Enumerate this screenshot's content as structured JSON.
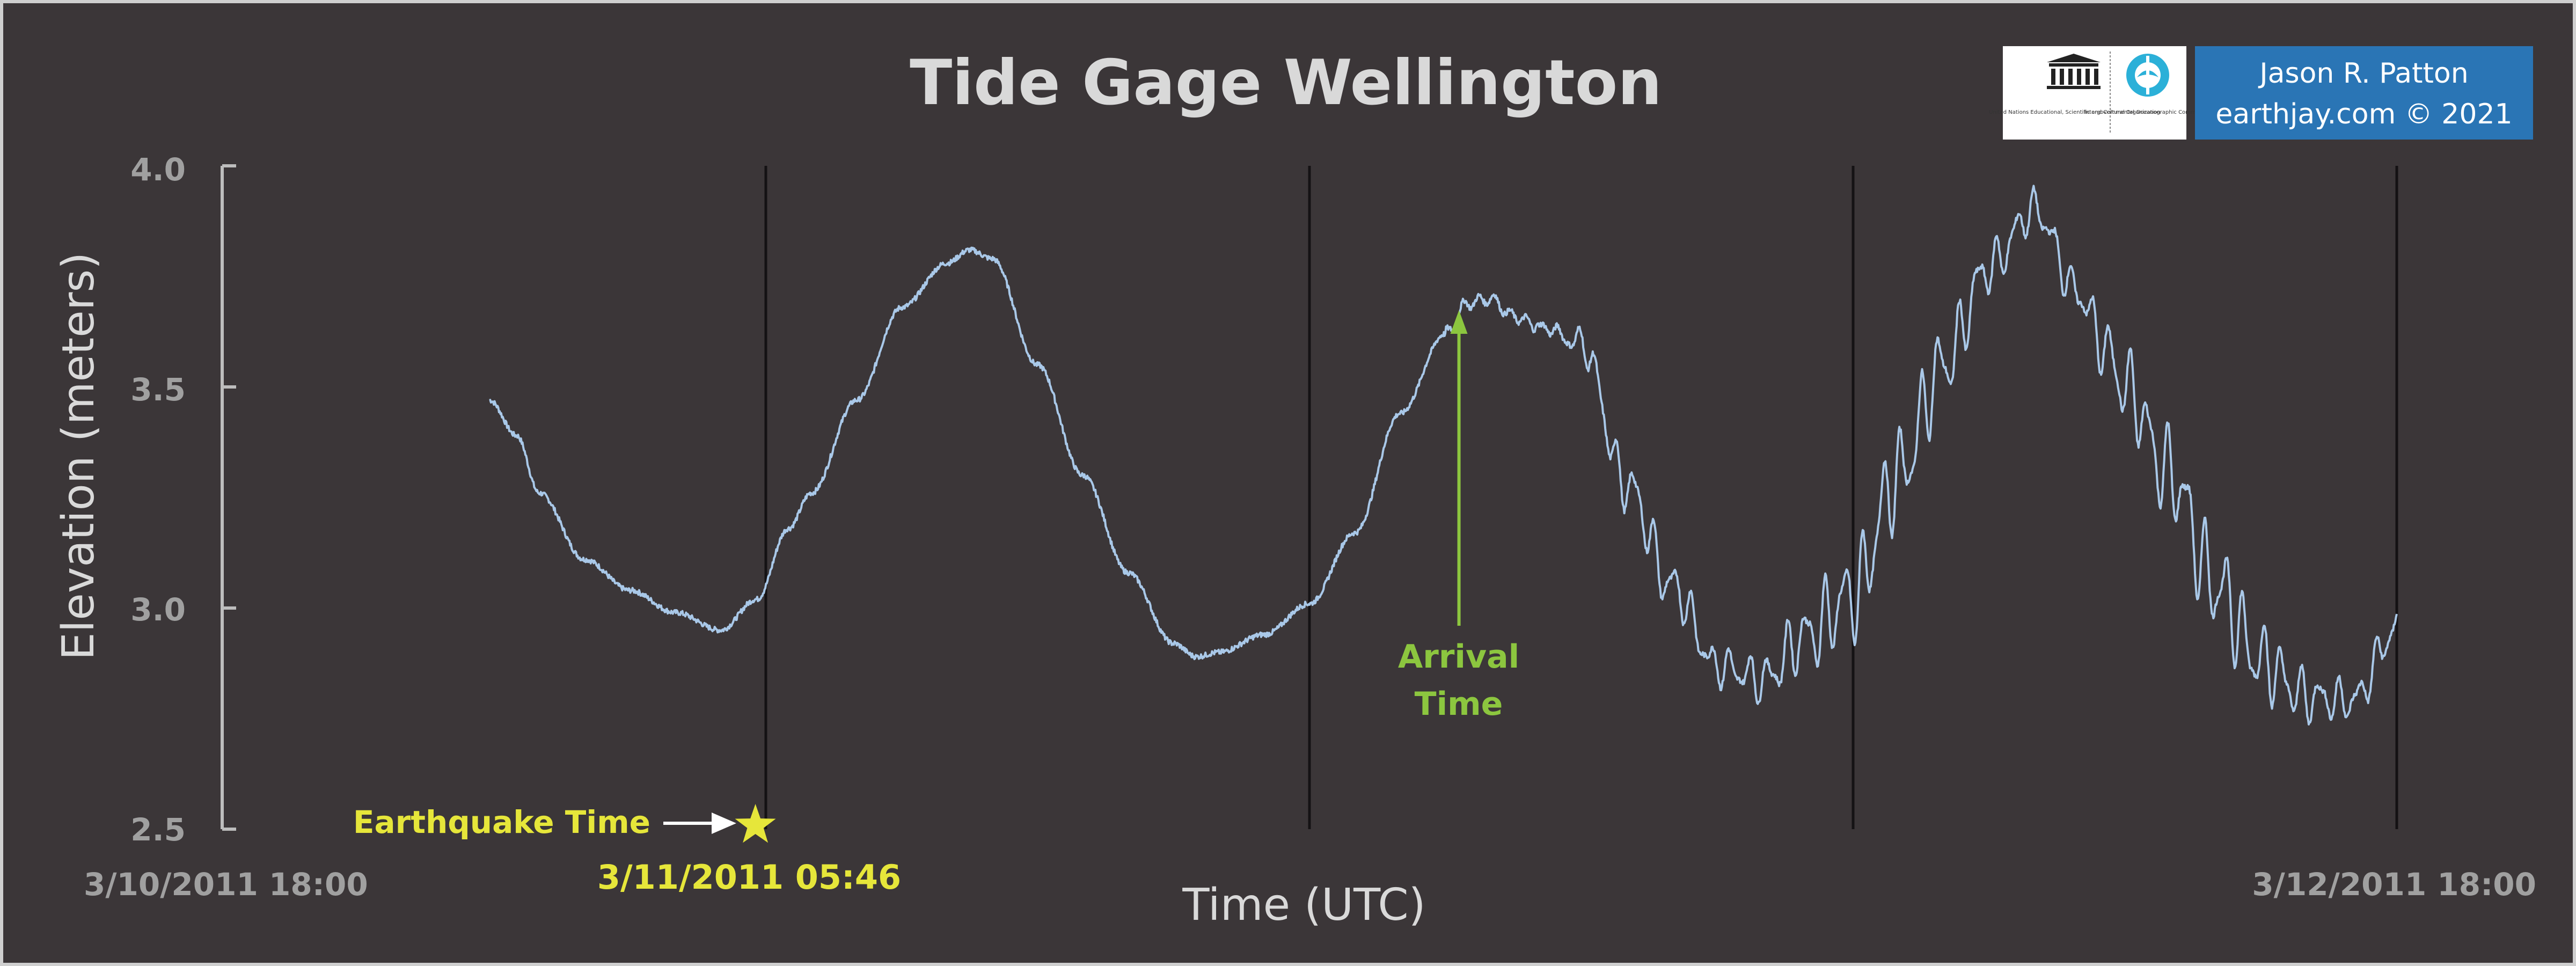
{
  "chart_data": {
    "type": "line",
    "title": "Tide Gage Wellington",
    "xlabel": "Time (UTC)",
    "ylabel": "Elevation (meters)",
    "x_range_hours": [
      0,
      48
    ],
    "ylim": [
      2.5,
      4.0
    ],
    "y_ticks": [
      "4.0",
      "3.5",
      "3.0",
      "2.5"
    ],
    "x_tick_labels": [
      {
        "hours": 0,
        "label": "3/10/2011 18:00"
      },
      {
        "hours": 48,
        "label": "3/12/2011 18:00"
      }
    ],
    "vertical_gridlines_hours": [
      12,
      24,
      36,
      48
    ],
    "grid": "vertical lines only",
    "line_color": "#a9c8e8",
    "series": [
      {
        "x_hours": [
          5.9,
          6.5,
          7,
          8,
          9,
          10,
          11,
          11.8,
          12.5,
          13,
          14,
          15,
          16,
          16.5,
          17,
          18,
          19,
          20,
          21,
          21.5,
          22,
          23,
          24,
          25,
          26,
          27,
          27.5,
          28,
          28.5,
          29,
          30,
          31,
          32,
          33,
          34,
          35,
          36,
          37,
          38,
          39,
          40,
          41,
          41.5,
          42,
          43,
          44,
          45,
          46,
          47,
          48
        ],
        "y": [
          3.47,
          3.39,
          3.26,
          3.11,
          3.04,
          2.99,
          2.95,
          3.02,
          3.18,
          3.26,
          3.47,
          3.68,
          3.78,
          3.81,
          3.79,
          3.55,
          3.3,
          3.08,
          2.92,
          2.89,
          2.9,
          2.94,
          3.01,
          3.17,
          3.44,
          3.62,
          3.69,
          3.7,
          3.66,
          3.64,
          3.6,
          3.28,
          3.05,
          2.87,
          2.84,
          2.94,
          3.03,
          3.3,
          3.55,
          3.77,
          3.9,
          3.71,
          3.6,
          3.5,
          3.3,
          3.05,
          2.88,
          2.8,
          2.79,
          2.95
        ]
      }
    ],
    "oscillation_start_hours": 29,
    "annotations": {
      "earthquake_label": "Earthquake Time",
      "earthquake_time_label": "3/11/2011 05:46",
      "earthquake_hours": 11.77,
      "earthquake_color": "#e6e63a",
      "arrival_label_line1": "Arrival",
      "arrival_label_line2": "Time",
      "arrival_hours": 27.3,
      "arrival_color": "#8cc63f"
    }
  },
  "logos": {
    "unesco_text": "United Nations Educational, Scientific and Cultural Organization",
    "ioc_text": "Intergovernmental Oceanographic Commission"
  },
  "credit": {
    "line1": "Jason R. Patton",
    "line2": "earthjay.com © 2021",
    "color": "#2a75b5"
  }
}
